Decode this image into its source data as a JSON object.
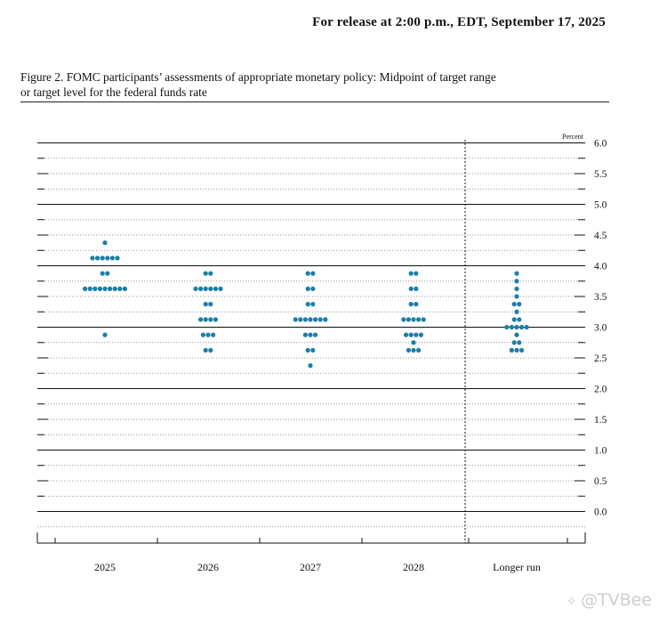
{
  "header": {
    "release": "For release at 2:00 p.m., EDT, September 17, 2025"
  },
  "figure": {
    "caption_line1": "Figure 2. FOMC participants’ assessments of appropriate monetary policy: Midpoint of target range",
    "caption_line2": "or target level for the federal funds rate"
  },
  "watermark": {
    "text": "@TVBee",
    "icon": "bee-logo-icon"
  },
  "chart_data": {
    "type": "scatter",
    "subtype": "dot-plot",
    "unit_label": "Percent",
    "ylim": [
      -0.25,
      6.0
    ],
    "y_ticks": [
      "6.0",
      "5.5",
      "5.0",
      "4.5",
      "4.0",
      "3.5",
      "3.0",
      "2.5",
      "2.0",
      "1.5",
      "1.0",
      "0.5",
      "0.0"
    ],
    "categories": [
      "2025",
      "2026",
      "2027",
      "2028",
      "Longer run"
    ],
    "grid": "solid lines at whole percents, dotted lines at each 0.25",
    "dot_color": "#1a7fa8",
    "points": [
      {
        "category": "2025",
        "rates": [
          {
            "value": 4.375,
            "count": 1
          },
          {
            "value": 4.125,
            "count": 6
          },
          {
            "value": 3.875,
            "count": 2
          },
          {
            "value": 3.625,
            "count": 9
          },
          {
            "value": 2.875,
            "count": 1
          }
        ]
      },
      {
        "category": "2026",
        "rates": [
          {
            "value": 3.875,
            "count": 2
          },
          {
            "value": 3.625,
            "count": 6
          },
          {
            "value": 3.375,
            "count": 2
          },
          {
            "value": 3.125,
            "count": 4
          },
          {
            "value": 2.875,
            "count": 3
          },
          {
            "value": 2.625,
            "count": 2
          }
        ]
      },
      {
        "category": "2027",
        "rates": [
          {
            "value": 3.875,
            "count": 2
          },
          {
            "value": 3.625,
            "count": 2
          },
          {
            "value": 3.375,
            "count": 2
          },
          {
            "value": 3.125,
            "count": 7
          },
          {
            "value": 2.875,
            "count": 3
          },
          {
            "value": 2.625,
            "count": 2
          },
          {
            "value": 2.375,
            "count": 1
          }
        ]
      },
      {
        "category": "2028",
        "rates": [
          {
            "value": 3.875,
            "count": 2
          },
          {
            "value": 3.625,
            "count": 2
          },
          {
            "value": 3.375,
            "count": 2
          },
          {
            "value": 3.125,
            "count": 5
          },
          {
            "value": 2.875,
            "count": 4
          },
          {
            "value": 2.75,
            "count": 1
          },
          {
            "value": 2.625,
            "count": 3
          }
        ]
      },
      {
        "category": "Longer run",
        "rates": [
          {
            "value": 3.875,
            "count": 1
          },
          {
            "value": 3.75,
            "count": 1
          },
          {
            "value": 3.625,
            "count": 1
          },
          {
            "value": 3.5,
            "count": 1
          },
          {
            "value": 3.375,
            "count": 2
          },
          {
            "value": 3.25,
            "count": 1
          },
          {
            "value": 3.125,
            "count": 2
          },
          {
            "value": 3.0,
            "count": 5
          },
          {
            "value": 2.875,
            "count": 1
          },
          {
            "value": 2.75,
            "count": 2
          },
          {
            "value": 2.625,
            "count": 3
          }
        ]
      }
    ]
  }
}
